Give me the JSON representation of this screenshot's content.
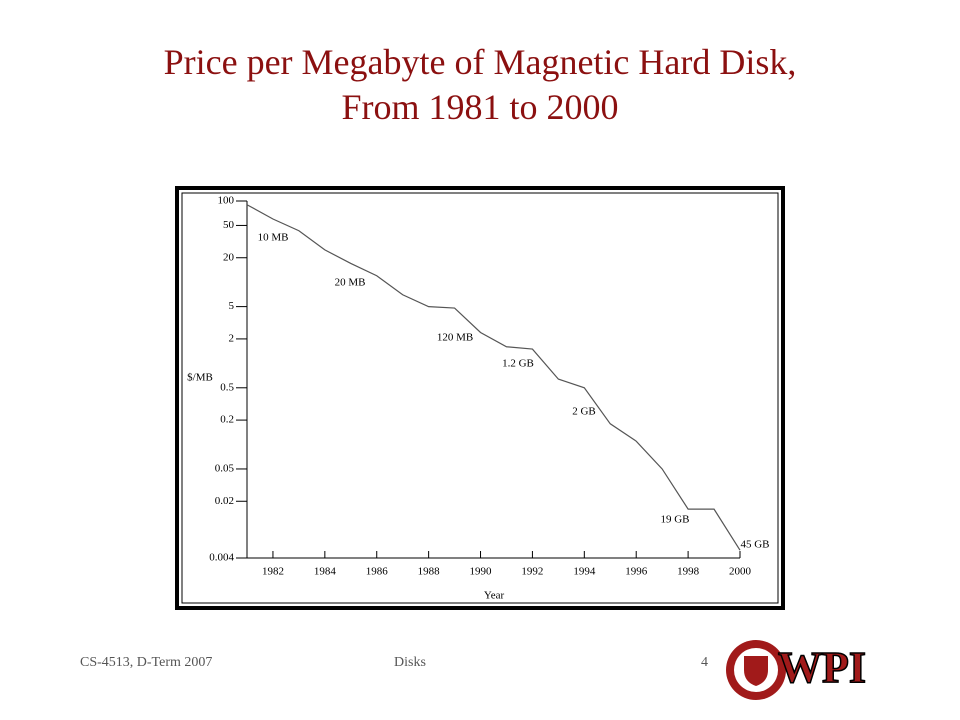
{
  "chart_data": {
    "type": "line",
    "title": "Price per Megabyte of Magnetic Hard Disk, From 1981 to 2000",
    "x_label": "Year",
    "y_label": "$/MB",
    "x": [
      1981,
      1982,
      1983,
      1984,
      1985,
      1986,
      1987,
      1988,
      1989,
      1990,
      1991,
      1992,
      1993,
      1994,
      1995,
      1996,
      1997,
      1998,
      1999,
      2000
    ],
    "series": [
      {
        "name": "$/MB",
        "color": "#555555",
        "values": [
          90,
          60,
          43,
          25,
          17,
          12,
          7,
          5,
          4.8,
          2.4,
          1.6,
          1.5,
          0.64,
          0.5,
          0.18,
          0.11,
          0.05,
          0.016,
          0.016,
          0.005
        ]
      }
    ],
    "xlim": [
      1981,
      2000
    ],
    "xticks": [
      1982,
      1984,
      1986,
      1988,
      1990,
      1992,
      1994,
      1996,
      1998,
      2000
    ],
    "ylim": [
      0.004,
      100
    ],
    "yticks": [
      100,
      50,
      20,
      5,
      2,
      0.5,
      0.2,
      0.05,
      0.02,
      0.004
    ],
    "log_y": true,
    "annotations": [
      "10 MB",
      "20 MB",
      "120 MB",
      "1.2 GB",
      "2 GB",
      "19 GB",
      "45 GB"
    ]
  },
  "footer": {
    "course": "CS-4513, D-Term 2007",
    "topic": "Disks",
    "page": "4",
    "logo": "WPI"
  }
}
